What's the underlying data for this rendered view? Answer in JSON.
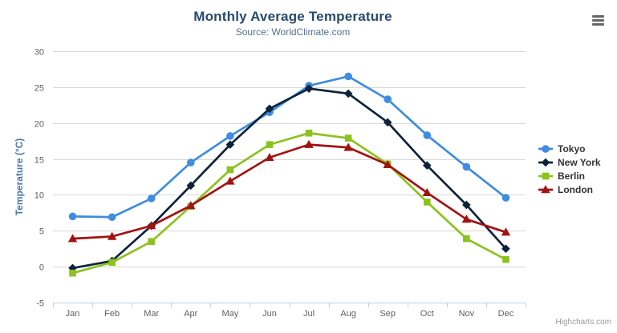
{
  "credits": "Highcharts.com",
  "menu": {
    "icon": "hamburger-icon"
  },
  "colors": {
    "grid": "#d8d8d8",
    "axis_line": "#c0d0e0",
    "tick_label": "#606060",
    "title": "#27496d",
    "subtitle": "#54708e",
    "y_axis_title": "#4878a8",
    "legend_text": "#333333",
    "credits_text": "#999999"
  },
  "chart_data": {
    "type": "line",
    "title": "Monthly Average Temperature",
    "subtitle": "Source: WorldClimate.com",
    "xlabel": "",
    "ylabel": "Temperature (°C)",
    "ylim": [
      -5,
      30
    ],
    "yticks": [
      -5,
      0,
      5,
      10,
      15,
      20,
      25,
      30
    ],
    "grid": true,
    "legend_position": "right",
    "categories": [
      "Jan",
      "Feb",
      "Mar",
      "Apr",
      "May",
      "Jun",
      "Jul",
      "Aug",
      "Sep",
      "Oct",
      "Nov",
      "Dec"
    ],
    "series": [
      {
        "name": "Tokyo",
        "color": "#3f8ce0",
        "marker": "circle",
        "values": [
          7.0,
          6.9,
          9.5,
          14.5,
          18.2,
          21.5,
          25.2,
          26.5,
          23.3,
          18.3,
          13.9,
          9.6
        ]
      },
      {
        "name": "New York",
        "color": "#0d233a",
        "marker": "diamond",
        "values": [
          -0.2,
          0.8,
          5.7,
          11.3,
          17.0,
          22.0,
          24.8,
          24.1,
          20.1,
          14.1,
          8.6,
          2.5
        ]
      },
      {
        "name": "Berlin",
        "color": "#8cc21e",
        "marker": "square",
        "values": [
          -0.9,
          0.6,
          3.5,
          8.4,
          13.5,
          17.0,
          18.6,
          17.9,
          14.3,
          9.0,
          3.9,
          1.0
        ]
      },
      {
        "name": "London",
        "color": "#a31212",
        "marker": "triangle",
        "values": [
          3.9,
          4.2,
          5.7,
          8.5,
          11.9,
          15.2,
          17.0,
          16.6,
          14.2,
          10.3,
          6.6,
          4.8
        ]
      }
    ]
  }
}
